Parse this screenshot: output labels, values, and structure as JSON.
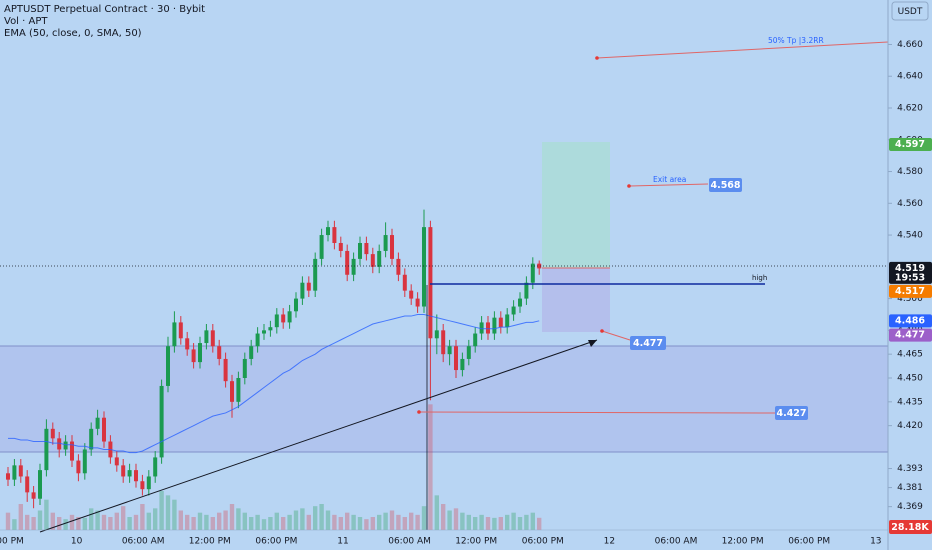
{
  "header": {
    "symbol": "APTUSDT Perpetual Contract · 30 · Bybit",
    "volume": "Vol · APT",
    "indicator": "EMA (50, close, 0, SMA, 50)",
    "currency": "USDT"
  },
  "chart_data": {
    "type": "candlestick",
    "ylim": [
      4.348,
      4.688
    ],
    "yticks": [
      {
        "value": 4.66,
        "label": "4.660"
      },
      {
        "value": 4.64,
        "label": "4.640"
      },
      {
        "value": 4.62,
        "label": "4.620"
      },
      {
        "value": 4.6,
        "label": "4.600"
      },
      {
        "value": 4.58,
        "label": "4.580"
      },
      {
        "value": 4.56,
        "label": "4.560"
      },
      {
        "value": 4.54,
        "label": "4.540"
      },
      {
        "value": 4.5,
        "label": "4.500"
      },
      {
        "value": 4.48,
        "label": "4.480"
      },
      4.465,
      {
        "value": 4.45,
        "label": "4.450"
      },
      4.435,
      {
        "value": 4.42,
        "label": "4.420"
      },
      4.393,
      4.381,
      4.369
    ],
    "grid": false,
    "x_labels": [
      "00 PM",
      "10",
      "06:00 AM",
      "12:00 PM",
      "06:00 PM",
      "11",
      "06:00 AM",
      "12:00 PM",
      "06:00 PM",
      "12",
      "06:00 AM",
      "12:00 PM",
      "06:00 PM",
      "13"
    ],
    "up_color": "#1b9a50",
    "down_color": "#d9343f",
    "candles": [
      [
        4.39,
        4.394,
        4.382,
        4.386
      ],
      [
        4.386,
        4.399,
        4.382,
        4.395
      ],
      [
        4.395,
        4.399,
        4.384,
        4.388
      ],
      [
        4.388,
        4.392,
        4.372,
        4.378
      ],
      [
        4.378,
        4.382,
        4.368,
        4.374
      ],
      [
        4.374,
        4.396,
        4.37,
        4.392
      ],
      [
        4.392,
        4.424,
        4.388,
        4.418
      ],
      [
        4.418,
        4.422,
        4.408,
        4.412
      ],
      [
        4.412,
        4.416,
        4.4,
        4.405
      ],
      [
        4.405,
        4.414,
        4.401,
        4.41
      ],
      [
        4.41,
        4.414,
        4.394,
        4.398
      ],
      [
        4.398,
        4.402,
        4.385,
        4.39
      ],
      [
        4.39,
        4.409,
        4.386,
        4.405
      ],
      [
        4.405,
        4.422,
        4.401,
        4.418
      ],
      [
        4.418,
        4.43,
        4.414,
        4.425
      ],
      [
        4.425,
        4.429,
        4.406,
        4.41
      ],
      [
        4.41,
        4.414,
        4.396,
        4.4
      ],
      [
        4.4,
        4.404,
        4.391,
        4.395
      ],
      [
        4.395,
        4.399,
        4.384,
        4.388
      ],
      [
        4.388,
        4.396,
        4.384,
        4.392
      ],
      [
        4.392,
        4.396,
        4.381,
        4.385
      ],
      [
        4.385,
        4.389,
        4.376,
        4.38
      ],
      [
        4.38,
        4.392,
        4.376,
        4.388
      ],
      [
        4.388,
        4.404,
        4.384,
        4.4
      ],
      [
        4.4,
        4.449,
        4.396,
        4.445
      ],
      [
        4.445,
        4.476,
        4.441,
        4.47
      ],
      [
        4.47,
        4.492,
        4.466,
        4.485
      ],
      [
        4.485,
        4.489,
        4.471,
        4.475
      ],
      [
        4.475,
        4.479,
        4.464,
        4.468
      ],
      [
        4.468,
        4.472,
        4.456,
        4.46
      ],
      [
        4.46,
        4.476,
        4.456,
        4.472
      ],
      [
        4.472,
        4.484,
        4.468,
        4.48
      ],
      [
        4.48,
        4.484,
        4.466,
        4.47
      ],
      [
        4.47,
        4.474,
        4.458,
        4.462
      ],
      [
        4.462,
        4.466,
        4.444,
        4.448
      ],
      [
        4.448,
        4.452,
        4.425,
        4.435
      ],
      [
        4.435,
        4.454,
        4.431,
        4.45
      ],
      [
        4.45,
        4.466,
        4.446,
        4.462
      ],
      [
        4.462,
        4.474,
        4.458,
        4.47
      ],
      [
        4.47,
        4.482,
        4.466,
        4.478
      ],
      [
        4.478,
        4.484,
        4.474,
        4.48
      ],
      [
        4.48,
        4.486,
        4.476,
        4.482
      ],
      [
        4.482,
        4.494,
        4.478,
        4.49
      ],
      [
        4.49,
        4.494,
        4.481,
        4.485
      ],
      [
        4.485,
        4.496,
        4.481,
        4.492
      ],
      [
        4.492,
        4.504,
        4.488,
        4.5
      ],
      [
        4.5,
        4.514,
        4.496,
        4.51
      ],
      [
        4.51,
        4.514,
        4.501,
        4.505
      ],
      [
        4.505,
        4.529,
        4.501,
        4.525
      ],
      [
        4.525,
        4.544,
        4.521,
        4.54
      ],
      [
        4.54,
        4.549,
        4.536,
        4.545
      ],
      [
        4.545,
        4.549,
        4.531,
        4.535
      ],
      [
        4.535,
        4.539,
        4.526,
        4.53
      ],
      [
        4.53,
        4.534,
        4.511,
        4.515
      ],
      [
        4.515,
        4.529,
        4.511,
        4.525
      ],
      [
        4.525,
        4.539,
        4.521,
        4.535
      ],
      [
        4.535,
        4.539,
        4.524,
        4.528
      ],
      [
        4.528,
        4.532,
        4.516,
        4.52
      ],
      [
        4.52,
        4.534,
        4.516,
        4.53
      ],
      [
        4.53,
        4.548,
        4.526,
        4.54
      ],
      [
        4.54,
        4.544,
        4.521,
        4.525
      ],
      [
        4.525,
        4.529,
        4.511,
        4.515
      ],
      [
        4.515,
        4.519,
        4.501,
        4.505
      ],
      [
        4.505,
        4.509,
        4.496,
        4.5
      ],
      [
        4.5,
        4.504,
        4.491,
        4.495
      ],
      [
        4.495,
        4.556,
        4.491,
        4.545
      ],
      [
        4.545,
        4.549,
        4.436,
        4.475
      ],
      [
        4.475,
        4.49,
        4.465,
        4.48
      ],
      [
        4.48,
        4.484,
        4.46,
        4.465
      ],
      [
        4.465,
        4.474,
        4.458,
        4.47
      ],
      [
        4.47,
        4.474,
        4.45,
        4.455
      ],
      [
        4.455,
        4.466,
        4.451,
        4.462
      ],
      [
        4.462,
        4.474,
        4.458,
        4.47
      ],
      [
        4.47,
        4.482,
        4.466,
        4.478
      ],
      [
        4.478,
        4.489,
        4.474,
        4.485
      ],
      [
        4.485,
        4.489,
        4.474,
        4.478
      ],
      [
        4.478,
        4.492,
        4.474,
        4.488
      ],
      [
        4.488,
        4.492,
        4.478,
        4.482
      ],
      [
        4.482,
        4.494,
        4.478,
        4.49
      ],
      [
        4.49,
        4.499,
        4.486,
        4.495
      ],
      [
        4.495,
        4.504,
        4.491,
        4.5
      ],
      [
        4.5,
        4.514,
        4.496,
        4.51
      ],
      [
        4.51,
        4.526,
        4.506,
        4.522
      ],
      [
        4.522,
        4.524,
        4.515,
        4.519
      ]
    ],
    "volumes": [
      40,
      25,
      60,
      35,
      30,
      45,
      70,
      40,
      30,
      25,
      35,
      30,
      28,
      50,
      45,
      35,
      30,
      40,
      55,
      30,
      35,
      60,
      40,
      50,
      90,
      80,
      70,
      45,
      35,
      30,
      40,
      35,
      30,
      40,
      45,
      60,
      50,
      40,
      30,
      35,
      25,
      30,
      40,
      30,
      35,
      45,
      50,
      35,
      55,
      60,
      45,
      35,
      30,
      40,
      35,
      30,
      25,
      30,
      35,
      40,
      45,
      35,
      30,
      40,
      35,
      55,
      290,
      80,
      60,
      45,
      50,
      40,
      35,
      30,
      35,
      30,
      28,
      30,
      35,
      40,
      30,
      35,
      40,
      28.18
    ],
    "volume_lim": [
      0,
      300
    ],
    "ema": {
      "color": "#2962ff",
      "values": [
        4.412,
        4.412,
        4.411,
        4.411,
        4.41,
        4.41,
        4.41,
        4.409,
        4.409,
        4.408,
        4.408,
        4.407,
        4.407,
        4.406,
        4.406,
        4.405,
        4.405,
        4.404,
        4.404,
        4.403,
        4.403,
        4.404,
        4.406,
        4.408,
        4.41,
        4.412,
        4.414,
        4.416,
        4.418,
        4.42,
        4.422,
        4.424,
        4.426,
        4.427,
        4.428,
        4.43,
        4.432,
        4.435,
        4.438,
        4.441,
        4.444,
        4.447,
        4.45,
        4.453,
        4.455,
        4.458,
        4.461,
        4.463,
        4.465,
        4.468,
        4.47,
        4.472,
        4.474,
        4.476,
        4.478,
        4.48,
        4.482,
        4.484,
        4.485,
        4.486,
        4.487,
        4.488,
        4.489,
        4.489,
        4.49,
        4.49,
        4.489,
        4.488,
        4.487,
        4.486,
        4.485,
        4.484,
        4.483,
        4.482,
        4.481,
        4.481,
        4.481,
        4.482,
        4.482,
        4.483,
        4.484,
        4.485,
        4.485,
        4.486
      ]
    },
    "price_badges": [
      {
        "value": 4.597,
        "color": "#4caf50"
      },
      {
        "value": 4.519,
        "color": "#131722",
        "time": "19:53"
      },
      {
        "value": 4.517,
        "color": "#f57c00"
      },
      {
        "value": 4.486,
        "color": "#2962ff"
      },
      {
        "value": 4.477,
        "color": "#9c5fc9"
      }
    ],
    "volume_badge": "28.18K",
    "annotations": {
      "tp": "50% Tp |3.2RR",
      "exit_label": "Exit area",
      "exit": 4.568,
      "high": "high",
      "target": 4.477,
      "stop": 4.427
    }
  }
}
